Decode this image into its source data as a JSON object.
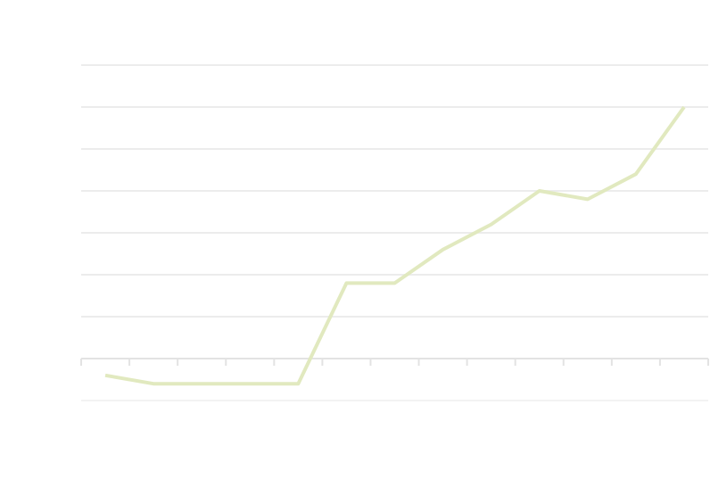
{
  "chart_data": {
    "type": "line",
    "categories": [
      null,
      null,
      null,
      null,
      null,
      null,
      null,
      null,
      null,
      null,
      null,
      null,
      null
    ],
    "values": [
      -0.4,
      -0.6,
      -0.6,
      -0.6,
      -0.6,
      1.8,
      1.8,
      2.6,
      3.2,
      4,
      3.8,
      4.4,
      6
    ],
    "color": "#e1e9bf",
    "ylim": [
      -1,
      7
    ],
    "yticks": [
      -1,
      0,
      1,
      2,
      3,
      4,
      5,
      6,
      7
    ],
    "grid": true
  }
}
